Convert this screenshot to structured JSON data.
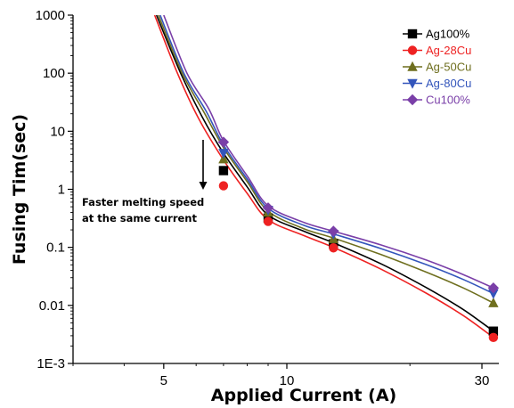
{
  "chart_data": {
    "type": "scatter",
    "xlabel": "Applied Current (A)",
    "ylabel": "Fusing Tim(sec)",
    "xscale": "log",
    "yscale": "log",
    "xlim": [
      3,
      33
    ],
    "ylim": [
      0.001,
      1000
    ],
    "xticks": [
      {
        "value": 5,
        "label": "5"
      },
      {
        "value": 10,
        "label": "10"
      },
      {
        "value": 30,
        "label": "30"
      }
    ],
    "yticks": [
      {
        "value": 1000,
        "label": "1000"
      },
      {
        "value": 100,
        "label": "100"
      },
      {
        "value": 10,
        "label": "10"
      },
      {
        "value": 1,
        "label": "1"
      },
      {
        "value": 0.1,
        "label": "0.1"
      },
      {
        "value": 0.01,
        "label": "0.01"
      },
      {
        "value": 0.001,
        "label": "1E-3"
      }
    ],
    "grid": false,
    "legend_position": "top-right",
    "series": [
      {
        "name": "Ag100%",
        "color": "#000000",
        "marker": "square",
        "x": [
          7,
          9,
          13,
          32
        ],
        "y": [
          2.1,
          0.32,
          0.115,
          0.0036
        ],
        "fit": {
          "x": [
            4.8,
            5.5,
            6.2,
            7,
            8,
            9,
            11,
            13,
            17,
            22,
            27,
            32
          ],
          "y": [
            1000,
            100,
            18,
            4.2,
            1.1,
            0.36,
            0.19,
            0.12,
            0.052,
            0.02,
            0.0085,
            0.0036
          ]
        }
      },
      {
        "name": "Ag-28Cu",
        "color": "#ee2222",
        "marker": "circle",
        "x": [
          7,
          9,
          13,
          32
        ],
        "y": [
          1.15,
          0.28,
          0.098,
          0.0028
        ],
        "fit": {
          "x": [
            4.75,
            5.4,
            6.1,
            7,
            8,
            9,
            11,
            13,
            17,
            22,
            27,
            32
          ],
          "y": [
            1000,
            100,
            16,
            3.2,
            0.85,
            0.3,
            0.16,
            0.1,
            0.042,
            0.016,
            0.0067,
            0.0028
          ]
        }
      },
      {
        "name": "Ag-50Cu",
        "color": "#6f6f1f",
        "marker": "triangle-up",
        "x": [
          7,
          9,
          13,
          32
        ],
        "y": [
          3.3,
          0.4,
          0.14,
          0.011
        ],
        "fit": {
          "x": [
            4.85,
            5.55,
            6.3,
            7,
            8,
            9,
            11,
            13,
            17,
            22,
            27,
            32
          ],
          "y": [
            1000,
            100,
            20,
            5.2,
            1.35,
            0.42,
            0.21,
            0.145,
            0.075,
            0.037,
            0.02,
            0.011
          ]
        }
      },
      {
        "name": "Ag-80Cu",
        "color": "#3355bb",
        "marker": "triangle-down",
        "x": [
          7,
          9,
          13,
          32
        ],
        "y": [
          4.2,
          0.44,
          0.17,
          0.016
        ],
        "fit": {
          "x": [
            4.9,
            5.6,
            6.35,
            7,
            8,
            9,
            11,
            13,
            17,
            22,
            27,
            32
          ],
          "y": [
            1000,
            100,
            22,
            5.8,
            1.5,
            0.47,
            0.24,
            0.17,
            0.095,
            0.05,
            0.028,
            0.016
          ]
        }
      },
      {
        "name": "Cu100%",
        "color": "#7a3fa8",
        "marker": "diamond",
        "x": [
          7,
          9,
          13,
          32
        ],
        "y": [
          6.5,
          0.48,
          0.19,
          0.02
        ],
        "fit": {
          "x": [
            5.0,
            5.7,
            6.45,
            7,
            8,
            9,
            11,
            13,
            17,
            22,
            27,
            32
          ],
          "y": [
            1000,
            100,
            24,
            6.8,
            1.7,
            0.52,
            0.27,
            0.19,
            0.11,
            0.06,
            0.034,
            0.02
          ]
        }
      }
    ],
    "annotation": {
      "lines": [
        "Faster melting speed",
        "at the same current"
      ],
      "arrow": "down"
    }
  }
}
